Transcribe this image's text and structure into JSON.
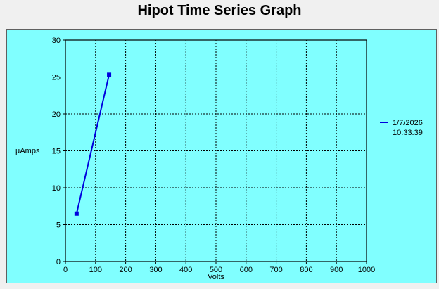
{
  "window": {
    "title": "Hipot Time Series Graph"
  },
  "colors": {
    "panel_background": "#80ffff",
    "plot_background": "#80ffff",
    "series_line": "#0000dd",
    "grid": "#000000"
  },
  "chart_data": {
    "type": "line",
    "title": "Hipot Time Series Graph",
    "xlabel": "Volts",
    "ylabel": "µAmps",
    "xlim": [
      0,
      1000
    ],
    "ylim": [
      0,
      30
    ],
    "xticks": [
      0,
      100,
      200,
      300,
      400,
      500,
      600,
      700,
      800,
      900,
      1000
    ],
    "yticks": [
      0,
      5,
      10,
      15,
      20,
      25,
      30
    ],
    "grid": true,
    "grid_style": "dotted",
    "legend_placement": "right",
    "series": [
      {
        "name": "1/7/2026 10:33:39",
        "legend_lines": [
          "1/7/2026",
          "10:33:39"
        ],
        "color": "#0000dd",
        "marker": "square",
        "x": [
          37,
          145
        ],
        "y": [
          6.5,
          25.3
        ]
      }
    ]
  }
}
